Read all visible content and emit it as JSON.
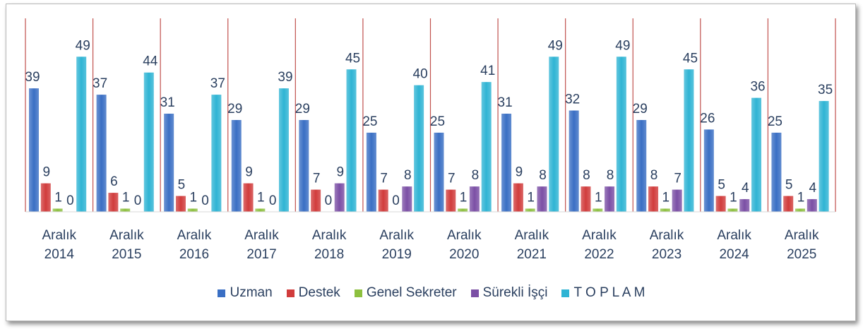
{
  "chart_data": {
    "type": "bar",
    "categories": [
      "Aralık 2014",
      "Aralık 2015",
      "Aralık 2016",
      "Aralık 2017",
      "Aralık 2018",
      "Aralık 2019",
      "Aralık 2020",
      "Aralık 2021",
      "Aralık 2022",
      "Aralık 2023",
      "Aralık 2024",
      "Aralık 2025"
    ],
    "series": [
      {
        "name": "Uzman",
        "color": "#3a6fc4",
        "values": [
          39,
          37,
          31,
          29,
          29,
          25,
          25,
          31,
          32,
          29,
          26,
          25
        ]
      },
      {
        "name": "Destek",
        "color": "#d13c3c",
        "values": [
          9,
          6,
          5,
          9,
          7,
          7,
          7,
          9,
          8,
          8,
          5,
          5
        ]
      },
      {
        "name": "Genel Sekreter",
        "color": "#8dc03f",
        "values": [
          1,
          1,
          1,
          1,
          0,
          0,
          1,
          1,
          1,
          1,
          1,
          1
        ]
      },
      {
        "name": "Sürekli İşçi",
        "color": "#7b4fa5",
        "values": [
          0,
          0,
          0,
          0,
          9,
          8,
          8,
          8,
          8,
          7,
          4,
          4
        ]
      },
      {
        "name": "T O P L A M",
        "color": "#2fb4d4",
        "values": [
          49,
          44,
          37,
          39,
          45,
          40,
          41,
          49,
          49,
          45,
          36,
          35
        ]
      }
    ],
    "ylim": [
      0,
      60
    ],
    "legend": "bottom"
  }
}
